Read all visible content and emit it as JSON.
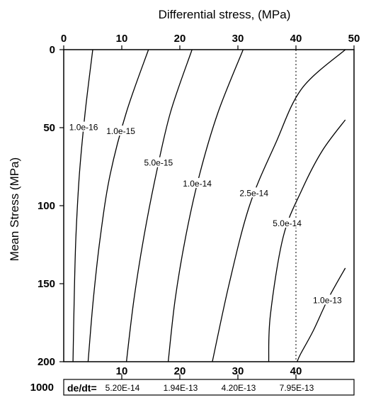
{
  "chart_data": {
    "type": "line",
    "title": "",
    "xlabel": "Differential stress, (MPa)",
    "ylabel": "Mean Stress (MPa)",
    "xlim": [
      0,
      50
    ],
    "ylim": [
      0,
      200
    ],
    "y_inverted": true,
    "x_ticks": [
      0,
      10,
      20,
      30,
      40,
      50
    ],
    "x_tick_labels": [
      "0",
      "10",
      "20",
      "30",
      "40",
      "50"
    ],
    "y_ticks": [
      0,
      50,
      100,
      150,
      200
    ],
    "y_tick_labels": [
      "0",
      "50",
      "100",
      "150",
      "200"
    ],
    "reference_line": {
      "x": 40,
      "style": "dotted"
    },
    "series": [
      {
        "name": "1.0e-16",
        "points": [
          [
            5.0,
            0
          ],
          [
            3.7,
            40
          ],
          [
            2.7,
            80
          ],
          [
            2.1,
            120
          ],
          [
            1.8,
            160
          ],
          [
            1.6,
            200
          ]
        ]
      },
      {
        "name": "1.0e-15",
        "points": [
          [
            14.6,
            0
          ],
          [
            10.8,
            40
          ],
          [
            8.0,
            80
          ],
          [
            6.3,
            120
          ],
          [
            5.1,
            160
          ],
          [
            4.2,
            200
          ]
        ]
      },
      {
        "name": "5.0e-15",
        "points": [
          [
            22.1,
            0
          ],
          [
            18.4,
            40
          ],
          [
            15.9,
            80
          ],
          [
            13.8,
            120
          ],
          [
            12.1,
            160
          ],
          [
            10.8,
            200
          ]
        ]
      },
      {
        "name": "1.0e-14",
        "points": [
          [
            30.9,
            0
          ],
          [
            26.6,
            40
          ],
          [
            23.4,
            80
          ],
          [
            21.0,
            120
          ],
          [
            19.2,
            160
          ],
          [
            18.0,
            200
          ]
        ]
      },
      {
        "name": "2.5e-14",
        "points": [
          [
            48.5,
            0
          ],
          [
            41.0,
            25
          ],
          [
            36.5,
            60
          ],
          [
            32.0,
            100
          ],
          [
            28.5,
            150
          ],
          [
            25.6,
            200
          ]
        ]
      },
      {
        "name": "5.0e-14",
        "points": [
          [
            48.5,
            45
          ],
          [
            44.5,
            65
          ],
          [
            41.0,
            90
          ],
          [
            37.8,
            120
          ],
          [
            35.6,
            170
          ],
          [
            35.3,
            200
          ]
        ]
      },
      {
        "name": "1.0e-13",
        "points": [
          [
            48.5,
            140
          ],
          [
            45.5,
            160
          ],
          [
            43.0,
            180
          ],
          [
            40.8,
            195
          ],
          [
            40.2,
            200
          ]
        ]
      }
    ],
    "bottom_strip": {
      "row_label": "1000",
      "prefix": "de/dt=",
      "scale_ticks": [
        "10",
        "20",
        "30",
        "40"
      ],
      "values": [
        "5.20E-14",
        "1.94E-13",
        "4.20E-13",
        "7.95E-13"
      ]
    }
  }
}
